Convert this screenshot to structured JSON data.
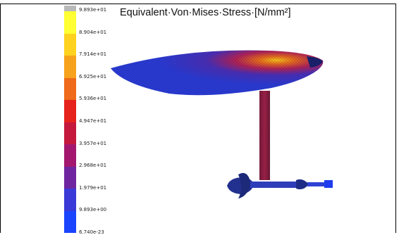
{
  "title": {
    "text": "Equivalent·Von·Mises·Stress·[N/mm²]"
  },
  "legend": {
    "labels": [
      "9.893e+01",
      "8.904e+01",
      "7.914e+01",
      "6.925e+01",
      "5.936e+01",
      "4.947e+01",
      "3.957e+01",
      "2.968e+01",
      "1.979e+01",
      "9.893e+00",
      "6.740e-23"
    ],
    "colors": [
      "#b9b9b9",
      "#ffff33",
      "#ffd21f",
      "#f7a21c",
      "#ef6a1a",
      "#e5231c",
      "#c4183d",
      "#a3186e",
      "#6f25a0",
      "#3a3ad8",
      "#1a44ff"
    ]
  },
  "model_colors": {
    "low": "#2a3bd6",
    "mid": "#a0224a",
    "high": "#f2a31e"
  }
}
